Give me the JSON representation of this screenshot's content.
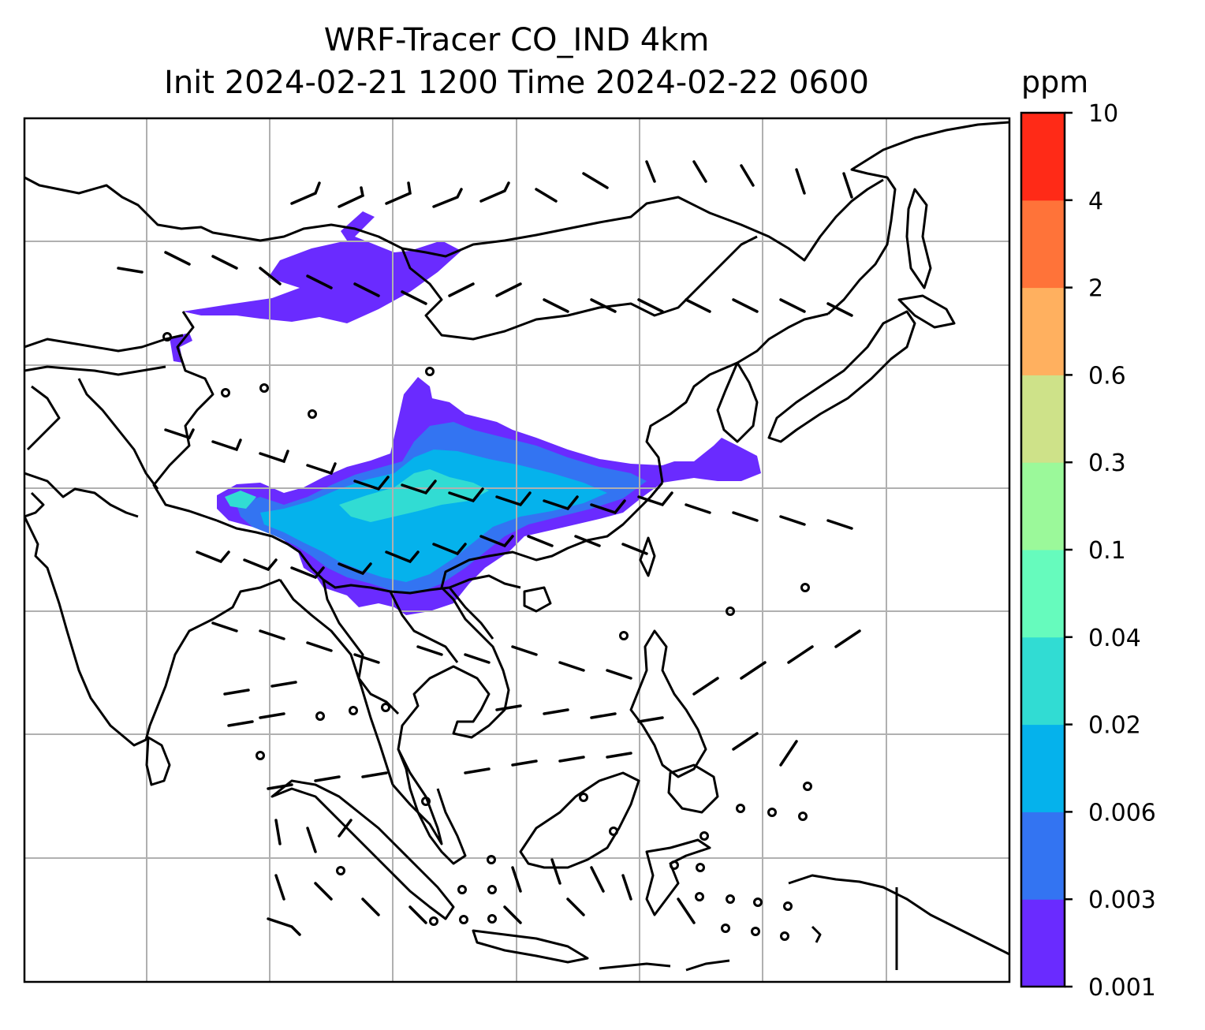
{
  "title_line1": "WRF-Tracer CO_IND 4km",
  "title_line2": "Init 2024-02-21 1200 Time 2024-02-22 0600",
  "colorbar": {
    "unit": "ppm",
    "levels": [
      "0.001",
      "0.003",
      "0.006",
      "0.02",
      "0.04",
      "0.1",
      "0.3",
      "0.6",
      "2",
      "4",
      "10"
    ],
    "colors": [
      "#6a2bff",
      "#3374f2",
      "#05b2ec",
      "#31dcd3",
      "#66fbbd",
      "#9bf99a",
      "#cee289",
      "#ffb05f",
      "#ff7339",
      "#ff2a17"
    ]
  },
  "map": {
    "gridlines": true,
    "plume_colors": {
      "outer": "#6a2bff",
      "mid": "#3374f2",
      "inner": "#05b2ec",
      "core": "#31dcd3"
    },
    "wind_barbs": true
  }
}
